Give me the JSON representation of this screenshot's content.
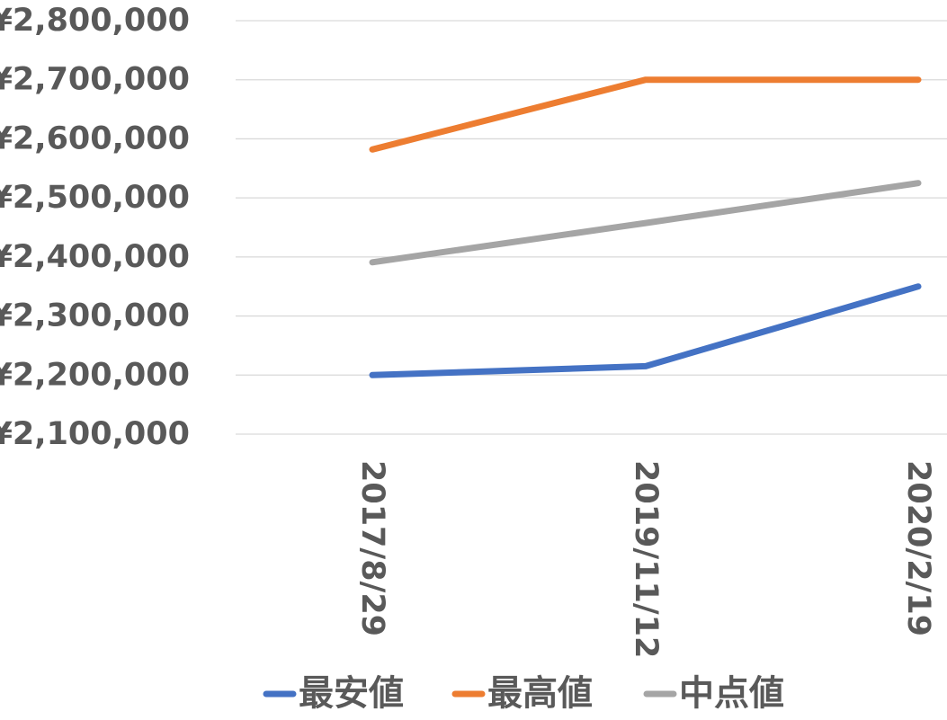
{
  "chart_data": {
    "type": "line",
    "title": "",
    "xlabel": "",
    "ylabel": "",
    "categories": [
      "2017/8/29",
      "2019/11/12",
      "2020/2/19"
    ],
    "ylim": [
      2100000,
      2800000
    ],
    "y_ticks": [
      "¥2,100,000",
      "¥2,200,000",
      "¥2,300,000",
      "¥2,400,000",
      "¥2,500,000",
      "¥2,600,000",
      "¥2,700,000",
      "¥2,800,000"
    ],
    "y_tick_values": [
      2100000,
      2200000,
      2300000,
      2400000,
      2500000,
      2600000,
      2700000,
      2800000
    ],
    "grid": true,
    "legend_position": "bottom",
    "series": [
      {
        "name": "最安値",
        "color": "#4472c4",
        "values": [
          2200000,
          2215000,
          2350000
        ]
      },
      {
        "name": "最高値",
        "color": "#ed7d31",
        "values": [
          2582000,
          2700000,
          2700000
        ]
      },
      {
        "name": "中点値",
        "color": "#a5a5a5",
        "values": [
          2391000,
          2457500,
          2525000
        ]
      }
    ]
  }
}
